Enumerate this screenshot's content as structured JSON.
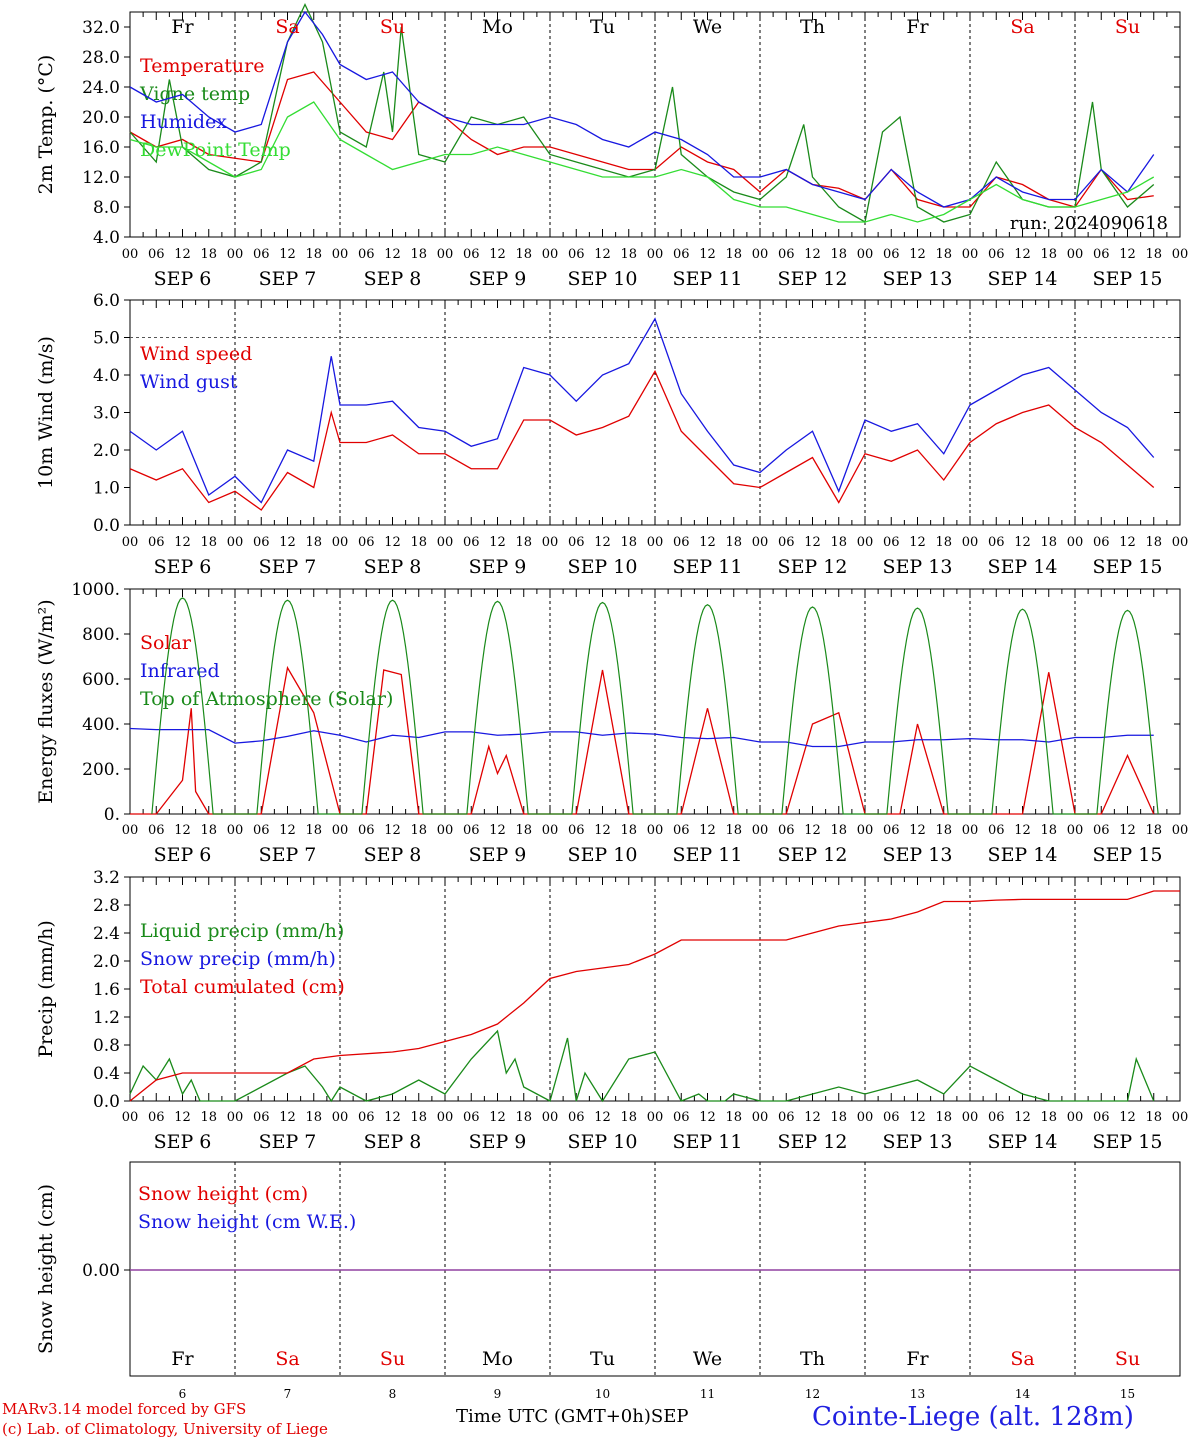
{
  "colors": {
    "red": "#e00000",
    "blue": "#1818e0",
    "green": "#1a8a1a",
    "lightgreen": "#33dd33",
    "purple": "#9040a0",
    "black": "#000000",
    "weekend": "#e00000"
  },
  "days": [
    {
      "abbr": "Fr",
      "date": "SEP  6",
      "num": "6",
      "weekend": false
    },
    {
      "abbr": "Sa",
      "date": "SEP  7",
      "num": "7",
      "weekend": true
    },
    {
      "abbr": "Su",
      "date": "SEP  8",
      "num": "8",
      "weekend": true
    },
    {
      "abbr": "Mo",
      "date": "SEP  9",
      "num": "9",
      "weekend": false
    },
    {
      "abbr": "Tu",
      "date": "SEP 10",
      "num": "10",
      "weekend": false
    },
    {
      "abbr": "We",
      "date": "SEP 11",
      "num": "11",
      "weekend": false
    },
    {
      "abbr": "Th",
      "date": "SEP 12",
      "num": "12",
      "weekend": false
    },
    {
      "abbr": "Fr",
      "date": "SEP 13",
      "num": "13",
      "weekend": false
    },
    {
      "abbr": "Sa",
      "date": "SEP 14",
      "num": "14",
      "weekend": true
    },
    {
      "abbr": "Su",
      "date": "SEP 15",
      "num": "15",
      "weekend": true
    }
  ],
  "hour_labels": [
    "00",
    "06",
    "12",
    "18"
  ],
  "hour_label_end": "00",
  "footer": {
    "model": "MARv3.14 model forced by GFS",
    "credit": "(c) Lab. of Climatology, University of Liege",
    "time_label": "Time UTC (GMT+0h)",
    "month": "SEP",
    "station": "Cointe-Liege (alt. 128m)"
  },
  "chart_data": [
    {
      "type": "line",
      "ylabel": "2m Temp. (°C)",
      "ylim": [
        4,
        34
      ],
      "yticks": [
        4,
        8,
        12,
        16,
        20,
        24,
        28,
        32
      ],
      "ytick_labels": [
        "4.0",
        "8.0",
        "12.0",
        "16.0",
        "20.0",
        "24.0",
        "28.0",
        "32.0"
      ],
      "x_unit": "hours since 2024-09-06 00 UTC",
      "annotation": "run: 2024090618",
      "series": [
        {
          "name": "Temperature",
          "color": "red",
          "x": [
            0,
            6,
            12,
            18,
            24,
            30,
            36,
            42,
            48,
            54,
            60,
            66,
            72,
            78,
            84,
            90,
            96,
            102,
            108,
            114,
            120,
            126,
            132,
            138,
            144,
            150,
            156,
            162,
            168,
            174,
            180,
            186,
            192,
            198,
            204,
            210,
            216,
            222,
            228,
            234
          ],
          "y": [
            18,
            16,
            17,
            15,
            14.5,
            14,
            25,
            26,
            22,
            18,
            17,
            22,
            20,
            17,
            15,
            16,
            16,
            15,
            14,
            13,
            13,
            16,
            14,
            13,
            10,
            13,
            11,
            10.5,
            9,
            13,
            9,
            8,
            8,
            12,
            11,
            9,
            8,
            13,
            9,
            9.5
          ]
        },
        {
          "name": "Vigne temp",
          "color": "green",
          "x": [
            0,
            6,
            9,
            12,
            18,
            24,
            30,
            36,
            40,
            44,
            48,
            54,
            58,
            60,
            62,
            66,
            72,
            78,
            84,
            90,
            96,
            102,
            108,
            114,
            120,
            124,
            126,
            132,
            138,
            144,
            150,
            154,
            156,
            162,
            168,
            172,
            176,
            180,
            186,
            192,
            198,
            204,
            210,
            216,
            220,
            222,
            228,
            234
          ],
          "y": [
            18,
            14,
            25,
            16,
            13,
            12,
            14,
            30,
            35,
            30,
            18,
            16,
            26,
            18,
            32,
            15,
            14,
            20,
            19,
            20,
            15,
            14,
            13,
            12,
            13,
            24,
            15,
            12,
            10,
            9,
            12,
            19,
            12,
            8,
            6,
            18,
            20,
            8,
            6,
            7,
            14,
            9,
            8,
            8,
            22,
            13,
            8,
            11
          ]
        },
        {
          "name": "Humidex",
          "color": "blue",
          "x": [
            0,
            6,
            12,
            18,
            24,
            30,
            36,
            40,
            44,
            48,
            54,
            60,
            66,
            72,
            78,
            84,
            90,
            96,
            102,
            108,
            114,
            120,
            126,
            132,
            138,
            144,
            150,
            156,
            162,
            168,
            174,
            180,
            186,
            192,
            198,
            204,
            210,
            216,
            222,
            228,
            234
          ],
          "y": [
            24,
            22,
            23,
            20,
            18,
            19,
            30,
            34,
            31,
            27,
            25,
            26,
            22,
            20,
            19,
            19,
            19,
            20,
            19,
            17,
            16,
            18,
            17,
            15,
            12,
            12,
            13,
            11,
            10,
            9,
            13,
            10,
            8,
            9,
            12,
            10,
            9,
            9,
            13,
            10,
            15
          ]
        },
        {
          "name": "DewPoint Temp",
          "color": "lightgreen",
          "x": [
            0,
            6,
            12,
            18,
            24,
            30,
            36,
            42,
            48,
            54,
            60,
            66,
            72,
            78,
            84,
            90,
            96,
            102,
            108,
            114,
            120,
            126,
            132,
            138,
            144,
            150,
            156,
            162,
            168,
            174,
            180,
            186,
            192,
            198,
            204,
            210,
            216,
            222,
            228,
            234
          ],
          "y": [
            17,
            16,
            16,
            14,
            12,
            13,
            20,
            22,
            17,
            15,
            13,
            14,
            15,
            15,
            16,
            15,
            14,
            13,
            12,
            12,
            12,
            13,
            12,
            9,
            8,
            8,
            7,
            6,
            6,
            7,
            6,
            7,
            9,
            11,
            9,
            8,
            8,
            9,
            10,
            12
          ]
        }
      ]
    },
    {
      "type": "line",
      "ylabel": "10m Wind (m/s)",
      "ylim": [
        0,
        6
      ],
      "yticks": [
        0,
        1,
        2,
        3,
        4,
        5,
        6
      ],
      "ytick_labels": [
        "0.0",
        "1.0",
        "2.0",
        "3.0",
        "4.0",
        "5.0",
        "6.0"
      ],
      "dashed_level": 5,
      "series": [
        {
          "name": "Wind speed",
          "color": "red",
          "x": [
            0,
            6,
            12,
            18,
            24,
            30,
            36,
            42,
            46,
            48,
            54,
            60,
            66,
            72,
            78,
            84,
            90,
            96,
            102,
            108,
            114,
            120,
            126,
            132,
            138,
            144,
            150,
            156,
            162,
            168,
            174,
            180,
            186,
            192,
            198,
            204,
            210,
            216,
            222,
            228,
            234
          ],
          "y": [
            1.5,
            1.2,
            1.5,
            0.6,
            0.9,
            0.4,
            1.4,
            1.0,
            3.0,
            2.2,
            2.2,
            2.4,
            1.9,
            1.9,
            1.5,
            1.5,
            2.8,
            2.8,
            2.4,
            2.6,
            2.9,
            4.1,
            2.5,
            1.8,
            1.1,
            1.0,
            1.4,
            1.8,
            0.6,
            1.9,
            1.7,
            2.0,
            1.2,
            2.2,
            2.7,
            3.0,
            3.2,
            2.6,
            2.2,
            1.6,
            1.0
          ]
        },
        {
          "name": "Wind gust",
          "color": "blue",
          "x": [
            0,
            6,
            12,
            18,
            24,
            30,
            36,
            42,
            46,
            48,
            54,
            60,
            66,
            72,
            78,
            84,
            90,
            96,
            102,
            108,
            114,
            120,
            126,
            132,
            138,
            144,
            150,
            156,
            162,
            168,
            174,
            180,
            186,
            192,
            198,
            204,
            210,
            216,
            222,
            228,
            234
          ],
          "y": [
            2.5,
            2.0,
            2.5,
            0.8,
            1.3,
            0.6,
            2.0,
            1.7,
            4.5,
            3.2,
            3.2,
            3.3,
            2.6,
            2.5,
            2.1,
            2.3,
            4.2,
            4.0,
            3.3,
            4.0,
            4.3,
            5.5,
            3.5,
            2.5,
            1.6,
            1.4,
            2.0,
            2.5,
            0.9,
            2.8,
            2.5,
            2.7,
            1.9,
            3.2,
            3.6,
            4.0,
            4.2,
            3.6,
            3.0,
            2.6,
            1.8
          ]
        }
      ]
    },
    {
      "type": "line",
      "ylabel": "Energy fluxes (W/m²)",
      "ylim": [
        0,
        1000
      ],
      "yticks": [
        0,
        200,
        400,
        600,
        800,
        1000
      ],
      "ytick_labels": [
        "0.",
        "200.",
        "400.",
        "600.",
        "800.",
        "1000."
      ],
      "series": [
        {
          "name": "Solar",
          "color": "red",
          "x": [
            0,
            6,
            12,
            14,
            15,
            18,
            24,
            30,
            36,
            42,
            48,
            54,
            58,
            62,
            66,
            72,
            78,
            82,
            84,
            86,
            90,
            96,
            102,
            108,
            114,
            120,
            126,
            132,
            138,
            144,
            150,
            156,
            162,
            168,
            172,
            176,
            180,
            186,
            192,
            198,
            204,
            210,
            216,
            222,
            228,
            234
          ],
          "y": [
            0,
            0,
            150,
            470,
            100,
            0,
            0,
            0,
            650,
            450,
            0,
            0,
            640,
            620,
            0,
            0,
            0,
            300,
            180,
            260,
            0,
            0,
            0,
            640,
            0,
            0,
            0,
            470,
            0,
            0,
            0,
            400,
            450,
            0,
            0,
            0,
            400,
            0,
            0,
            0,
            0,
            630,
            0,
            0,
            260,
            0
          ]
        },
        {
          "name": "Infrared",
          "color": "blue",
          "x": [
            0,
            6,
            12,
            18,
            24,
            30,
            36,
            42,
            48,
            54,
            60,
            66,
            72,
            78,
            84,
            90,
            96,
            102,
            108,
            114,
            120,
            126,
            132,
            138,
            144,
            150,
            156,
            162,
            168,
            174,
            180,
            186,
            192,
            198,
            204,
            210,
            216,
            222,
            228,
            234
          ],
          "y": [
            380,
            375,
            375,
            375,
            315,
            325,
            345,
            370,
            350,
            320,
            350,
            340,
            365,
            365,
            350,
            355,
            365,
            365,
            350,
            360,
            355,
            340,
            335,
            340,
            320,
            320,
            300,
            300,
            320,
            320,
            330,
            330,
            335,
            330,
            330,
            320,
            340,
            340,
            350,
            350
          ]
        },
        {
          "name": "Top of Atmosphere (Solar)",
          "color": "green",
          "peaks": [
            960,
            950,
            950,
            945,
            940,
            930,
            920,
            915,
            910,
            905
          ]
        }
      ]
    },
    {
      "type": "line",
      "ylabel": "Precip (mm/h)",
      "ylim": [
        0,
        3.2
      ],
      "yticks": [
        0,
        0.4,
        0.8,
        1.2,
        1.6,
        2.0,
        2.4,
        2.8,
        3.2
      ],
      "ytick_labels": [
        "0.0",
        "0.4",
        "0.8",
        "1.2",
        "1.6",
        "2.0",
        "2.4",
        "2.8",
        "3.2"
      ],
      "series": [
        {
          "name": "Liquid precip (mm/h)",
          "color": "green",
          "x": [
            0,
            3,
            6,
            9,
            12,
            14,
            16,
            20,
            24,
            36,
            40,
            44,
            46,
            48,
            54,
            60,
            66,
            72,
            78,
            84,
            86,
            88,
            90,
            96,
            100,
            102,
            104,
            108,
            114,
            120,
            126,
            130,
            132,
            136,
            138,
            144,
            150,
            156,
            162,
            168,
            174,
            180,
            186,
            192,
            198,
            204,
            210,
            216,
            222,
            228,
            230,
            234
          ],
          "y": [
            0.1,
            0.5,
            0.3,
            0.6,
            0.1,
            0.3,
            0,
            0,
            0,
            0.4,
            0.5,
            0.2,
            0,
            0.2,
            0,
            0.1,
            0.3,
            0.1,
            0.6,
            1.0,
            0.4,
            0.6,
            0.2,
            0,
            0.9,
            0,
            0.4,
            0,
            0.6,
            0.7,
            0,
            0.1,
            0,
            0,
            0.1,
            0,
            0,
            0.1,
            0.2,
            0.1,
            0.2,
            0.3,
            0.1,
            0.5,
            0.3,
            0.1,
            0,
            0,
            0,
            0,
            0.6,
            0
          ]
        },
        {
          "name": "Snow precip (mm/h)",
          "color": "blue",
          "x": [],
          "y": []
        },
        {
          "name": "Total cumulated (cm)",
          "color": "red",
          "x": [
            0,
            6,
            12,
            24,
            36,
            42,
            48,
            60,
            66,
            72,
            78,
            84,
            90,
            96,
            102,
            108,
            114,
            120,
            126,
            132,
            138,
            144,
            150,
            156,
            162,
            168,
            174,
            180,
            186,
            192,
            198,
            204,
            210,
            216,
            222,
            228,
            234,
            240
          ],
          "y": [
            0.0,
            0.3,
            0.4,
            0.4,
            0.4,
            0.6,
            0.65,
            0.7,
            0.75,
            0.85,
            0.95,
            1.1,
            1.4,
            1.75,
            1.85,
            1.9,
            1.95,
            2.1,
            2.3,
            2.3,
            2.3,
            2.3,
            2.3,
            2.4,
            2.5,
            2.55,
            2.6,
            2.7,
            2.85,
            2.85,
            2.87,
            2.88,
            2.88,
            2.88,
            2.88,
            2.88,
            3.0,
            3.0
          ]
        }
      ]
    },
    {
      "type": "line",
      "ylabel": "Snow height (cm)",
      "ytick_labels": [
        "0.00"
      ],
      "series": [
        {
          "name": "Snow height (cm)",
          "color": "red",
          "x": [
            0,
            240
          ],
          "y": [
            0,
            0
          ]
        },
        {
          "name": "Snow height (cm W.E.)",
          "color": "blue",
          "x": [
            0,
            240
          ],
          "y": [
            0,
            0
          ]
        }
      ]
    }
  ]
}
